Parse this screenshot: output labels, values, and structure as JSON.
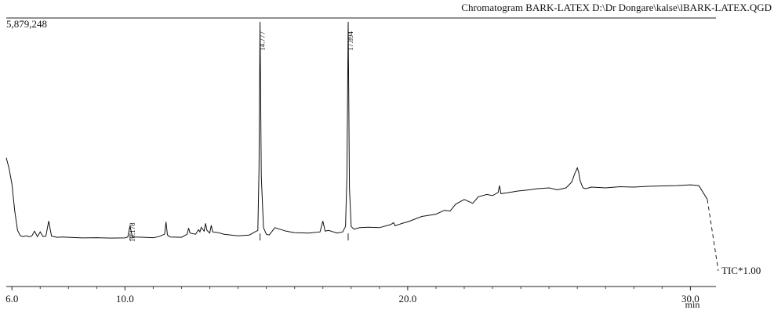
{
  "chart_data": {
    "type": "line",
    "title": "Chromatogram BARK-LATEX D:\\Dr Dongare\\kalse\\lBARK-LATEX.QGD",
    "y_max_label": "5,879,248",
    "xlabel": "min",
    "trace_label": "TIC*1.00",
    "xlim": [
      5.8,
      30.6
    ],
    "ylim": [
      0,
      5879248
    ],
    "x_ticks": [
      {
        "value": 6.0,
        "label": "6.0"
      },
      {
        "value": 10.0,
        "label": "10.0"
      },
      {
        "value": 20.0,
        "label": "20.0"
      },
      {
        "value": 30.0,
        "label": "30.0"
      }
    ],
    "peaks": [
      {
        "label": "10.178",
        "rt": 10.178
      },
      {
        "label": "14.777",
        "rt": 14.777
      },
      {
        "label": "17.894",
        "rt": 17.894
      }
    ],
    "series": [
      {
        "line_color": "#111111",
        "x": [
          5.8,
          5.9,
          6.0,
          6.1,
          6.2,
          6.3,
          6.4,
          6.5,
          6.6,
          6.7,
          6.8,
          6.9,
          7.0,
          7.1,
          7.2,
          7.3,
          7.4,
          7.6,
          7.8,
          8.0,
          8.5,
          9.0,
          9.5,
          10.0,
          10.1,
          10.178,
          10.26,
          10.5,
          11.0,
          11.2,
          11.4,
          11.45,
          11.5,
          11.6,
          12.0,
          12.2,
          12.25,
          12.3,
          12.5,
          12.6,
          12.65,
          12.7,
          12.8,
          12.85,
          12.9,
          13.0,
          13.05,
          13.1,
          13.3,
          13.5,
          14.0,
          14.4,
          14.6,
          14.7,
          14.74,
          14.777,
          14.82,
          14.9,
          15.0,
          15.1,
          15.3,
          15.7,
          16.0,
          16.5,
          16.9,
          17.0,
          17.08,
          17.2,
          17.5,
          17.7,
          17.8,
          17.85,
          17.894,
          17.94,
          18.0,
          18.1,
          18.3,
          18.6,
          19.0,
          19.4,
          19.5,
          19.55,
          19.8,
          20.0,
          20.5,
          21.0,
          21.3,
          21.5,
          21.7,
          22.0,
          22.3,
          22.5,
          22.8,
          23.0,
          23.2,
          23.25,
          23.3,
          23.5,
          23.9,
          24.3,
          24.6,
          25.0,
          25.3,
          25.6,
          25.8,
          25.9,
          26.0,
          26.05,
          26.1,
          26.2,
          26.3,
          26.5,
          27.0,
          27.5,
          28.0,
          28.5,
          29.0,
          29.5,
          30.0,
          30.3,
          30.6
        ],
        "y": [
          2280000,
          2000000,
          1600000,
          900000,
          400000,
          260000,
          240000,
          260000,
          235000,
          250000,
          380000,
          240000,
          360000,
          240000,
          250000,
          640000,
          250000,
          220000,
          230000,
          220000,
          205000,
          210000,
          200000,
          205000,
          230000,
          520000,
          225000,
          225000,
          210000,
          240000,
          300000,
          620000,
          280000,
          230000,
          220000,
          300000,
          460000,
          330000,
          300000,
          420000,
          360000,
          480000,
          380000,
          580000,
          400000,
          330000,
          530000,
          360000,
          340000,
          300000,
          260000,
          280000,
          360000,
          400000,
          2000000,
          5800000,
          1800000,
          470000,
          300000,
          280000,
          470000,
          380000,
          340000,
          330000,
          360000,
          640000,
          380000,
          400000,
          330000,
          360000,
          500000,
          1800000,
          5800000,
          1500000,
          500000,
          430000,
          470000,
          480000,
          470000,
          550000,
          600000,
          520000,
          580000,
          620000,
          760000,
          820000,
          920000,
          900000,
          1080000,
          1200000,
          1100000,
          1270000,
          1330000,
          1300000,
          1380000,
          1560000,
          1350000,
          1370000,
          1420000,
          1450000,
          1480000,
          1500000,
          1450000,
          1500000,
          1650000,
          1850000,
          2020000,
          1900000,
          1680000,
          1500000,
          1480000,
          1520000,
          1500000,
          1530000,
          1520000,
          1540000,
          1550000,
          1560000,
          1580000,
          1560000,
          1200000
        ]
      }
    ]
  }
}
